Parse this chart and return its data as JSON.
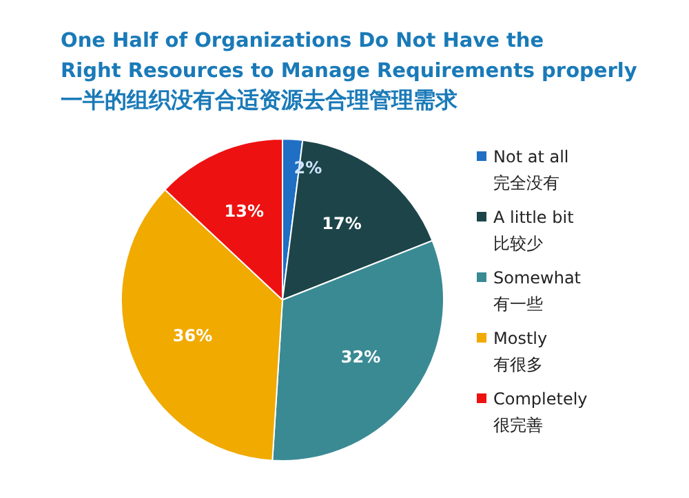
{
  "chart_data": {
    "type": "pie",
    "title": "One Half of Organizations Do Not Have the\nRight Resources to Manage Requirements properly",
    "subtitle": "一半的组织没有合适资源去合理管理需求",
    "categories": [
      "Not at all\n完全没有",
      "A little bit\n比较少",
      "Somewhat\n有一些",
      "Mostly\n有很多",
      "Completely\n很完善"
    ],
    "values": [
      2,
      17,
      32,
      36,
      13
    ],
    "colors": [
      "#1f6fc4",
      "#1d4549",
      "#3a8a94",
      "#f0aa00",
      "#ee1111"
    ],
    "value_labels": [
      "2%",
      "17%",
      "32%",
      "36%",
      "13%"
    ],
    "legend": "right"
  }
}
